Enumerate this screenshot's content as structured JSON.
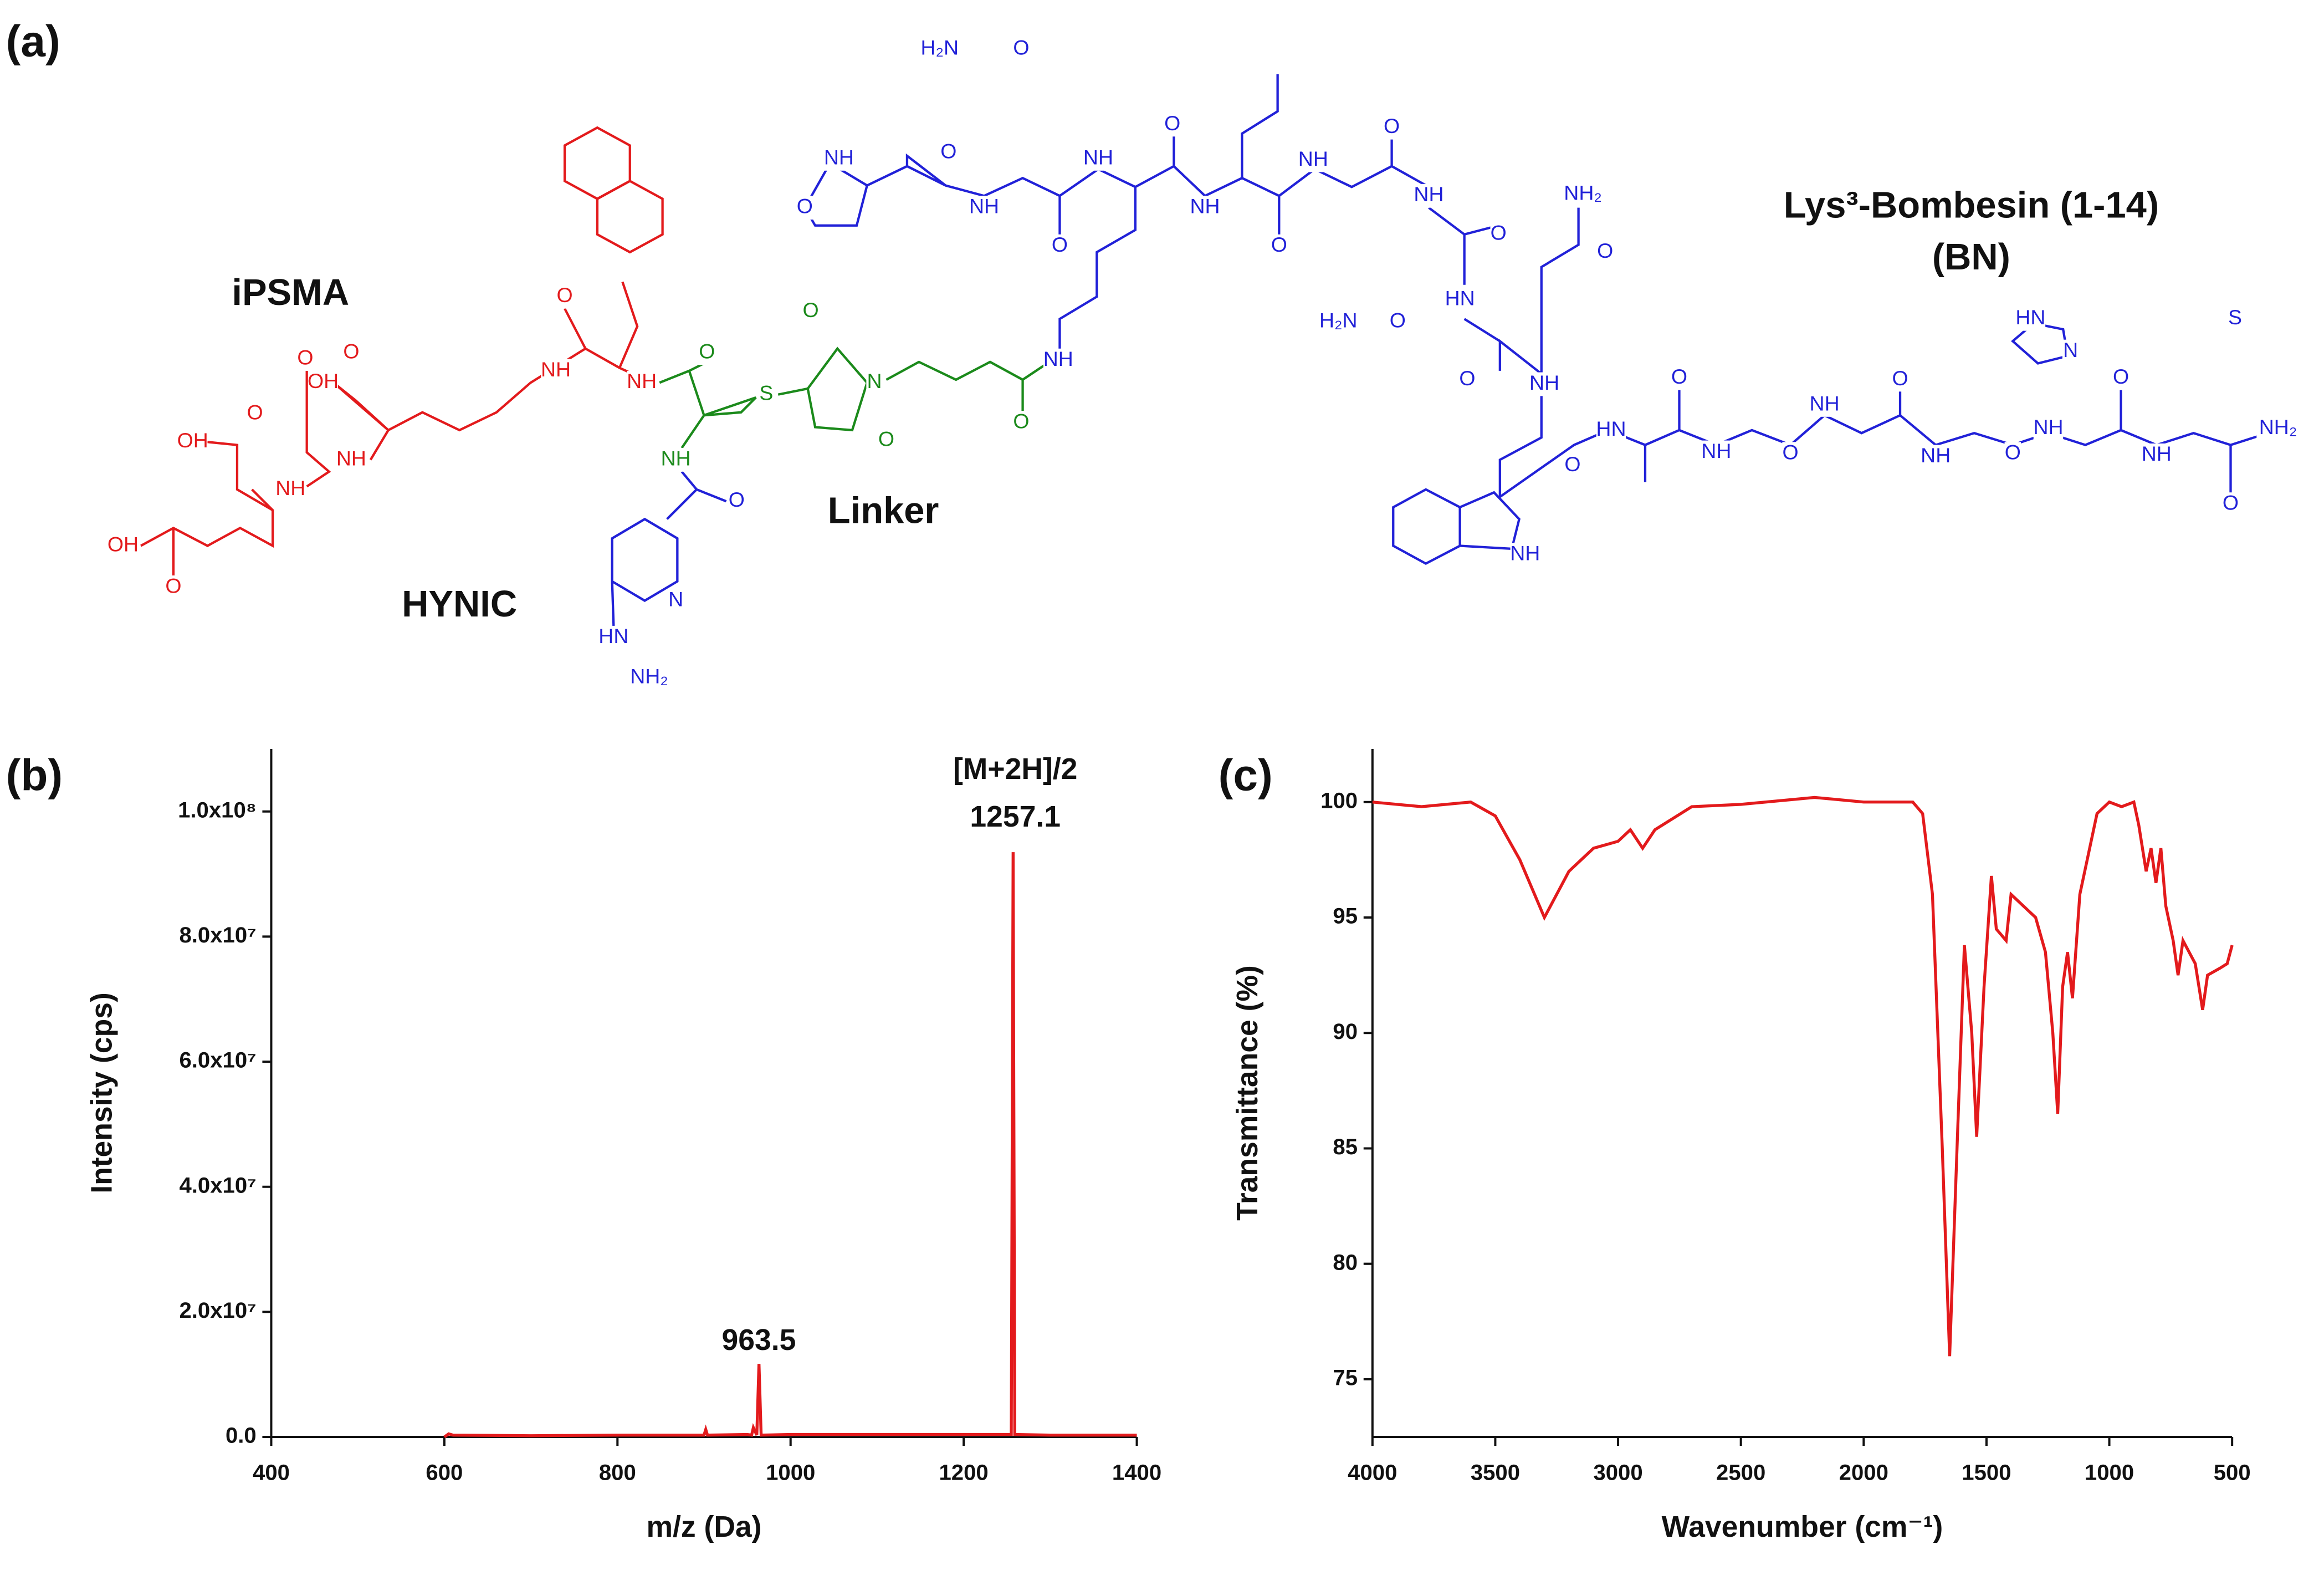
{
  "structure": {
    "panel_label": "(a)",
    "labels": [
      "iPSMA",
      "HYNIC",
      "Linker",
      "Lys³-Bombesin (1-14)",
      "(BN)"
    ],
    "atoms": [
      "OH",
      "O",
      "OH",
      "O",
      "NH",
      "O",
      "NH",
      "OH",
      "O",
      "NH",
      "O",
      "NH",
      "O",
      "S",
      "O",
      "N",
      "O",
      "NH",
      "O",
      "O",
      "N",
      "HN",
      "NH₂",
      "H₂N",
      "O",
      "O",
      "NH",
      "O",
      "NH",
      "O",
      "NH",
      "O",
      "NH",
      "O",
      "NH",
      "O",
      "NH",
      "NH₂",
      "O",
      "O",
      "HN",
      "H₂N",
      "O",
      "O",
      "NH",
      "NH",
      "HN",
      "O",
      "NH",
      "O",
      "O",
      "NH",
      "O",
      "NH",
      "O",
      "NH",
      "O",
      "NH",
      "NH₂",
      "O",
      "NH",
      "HN",
      "N",
      "S"
    ]
  },
  "chart_data": [
    {
      "type": "line",
      "panel_label": "(b)",
      "xlabel": "m/z (Da)",
      "ylabel": "Intensity (cps)",
      "xlim": [
        400,
        1400
      ],
      "ylim": [
        0,
        110000000
      ],
      "xticks": [
        400,
        600,
        800,
        1000,
        1200,
        1400
      ],
      "yticks": [
        {
          "value": 0,
          "label": "0.0"
        },
        {
          "value": 20000000,
          "label": "2.0x10⁷"
        },
        {
          "value": 40000000,
          "label": "4.0x10⁷"
        },
        {
          "value": 60000000,
          "label": "6.0x10⁷"
        },
        {
          "value": 80000000,
          "label": "8.0x10⁷"
        },
        {
          "value": 100000000,
          "label": "1.0x10⁸"
        }
      ],
      "series": [
        {
          "color": "#e31a1c",
          "x": [
            600,
            605,
            610,
            700,
            800,
            900,
            902,
            904,
            950,
            955,
            957,
            961,
            963.5,
            966,
            1000,
            1100,
            1200,
            1255,
            1257.1,
            1259,
            1300,
            1400
          ],
          "values": [
            0,
            500000,
            300000,
            200000,
            300000,
            300000,
            1200000,
            300000,
            400000,
            300000,
            1500000,
            300000,
            11700000,
            300000,
            400000,
            400000,
            400000,
            400000,
            93500000,
            400000,
            300000,
            300000
          ]
        }
      ],
      "annotations": [
        "963.5",
        "[M+2H]/2",
        "1257.1"
      ]
    },
    {
      "type": "line",
      "panel_label": "(c)",
      "xlabel": "Wavenumber (cm⁻¹)",
      "ylabel": "Transmittance (%)",
      "xlim": [
        4000,
        500
      ],
      "ylim": [
        72.5,
        102.3
      ],
      "xticks": [
        4000,
        3500,
        3000,
        2500,
        2000,
        1500,
        1000,
        500
      ],
      "yticks": [
        75,
        80,
        85,
        90,
        95,
        100
      ],
      "series": [
        {
          "color": "#e31a1c",
          "x": [
            4000,
            3800,
            3600,
            3500,
            3400,
            3300,
            3200,
            3100,
            3000,
            2950,
            2900,
            2850,
            2700,
            2500,
            2200,
            2000,
            1800,
            1760,
            1720,
            1680,
            1650,
            1620,
            1590,
            1560,
            1540,
            1510,
            1480,
            1460,
            1420,
            1400,
            1350,
            1300,
            1260,
            1230,
            1210,
            1190,
            1170,
            1150,
            1120,
            1050,
            1000,
            950,
            900,
            880,
            850,
            830,
            810,
            790,
            770,
            740,
            720,
            700,
            650,
            620,
            600,
            550,
            520,
            500
          ],
          "values": [
            100,
            99.8,
            100,
            99.4,
            97.5,
            95,
            97,
            98,
            98.3,
            98.8,
            98,
            98.8,
            99.8,
            99.9,
            100.2,
            100,
            100,
            99.5,
            96,
            85,
            76,
            85,
            93.8,
            90,
            85.5,
            92,
            96.8,
            94.5,
            94,
            96,
            95.5,
            95,
            93.5,
            90,
            86.5,
            92,
            93.5,
            91.5,
            96,
            99.5,
            100,
            99.8,
            100,
            99,
            97,
            98,
            96.5,
            98,
            95.5,
            94,
            92.5,
            94,
            93,
            91,
            92.5,
            92.8,
            93,
            93.8
          ]
        }
      ]
    }
  ]
}
